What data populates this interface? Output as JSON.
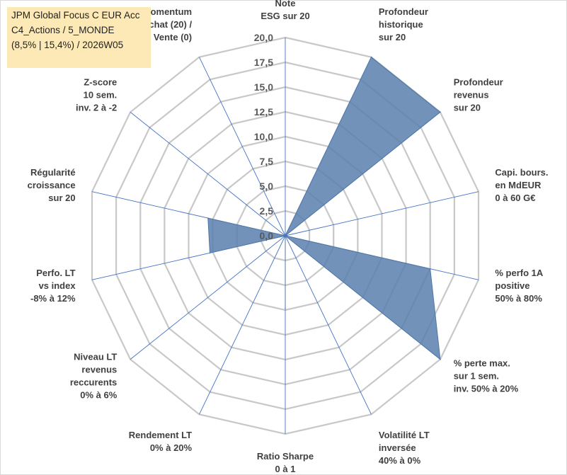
{
  "title_box": {
    "line1": "JPM Global Focus C EUR Acc",
    "line2": "C4_Actions / 5_MONDE",
    "line3": "(8,5% | 15,4%) / 2026W05"
  },
  "colors": {
    "fill": "#5b7fad",
    "stroke": "#4f78a8",
    "grid": "#c8c8c8",
    "spoke": "#4472c4"
  },
  "chart_data": {
    "type": "radar",
    "rlim": [
      0,
      20
    ],
    "tick_values": [
      0,
      2.5,
      5,
      7.5,
      10,
      12.5,
      15,
      17.5,
      20
    ],
    "tick_labels": [
      "0,0",
      "2,5",
      "5,0",
      "7,5",
      "10,0",
      "12,5",
      "15,0",
      "17,5",
      "20,0"
    ],
    "grid": true,
    "legend": "none",
    "axes": [
      {
        "lines": [
          "Note",
          "ESG sur 20"
        ]
      },
      {
        "lines": [
          "Profondeur",
          "historique",
          "sur 20"
        ]
      },
      {
        "lines": [
          "Profondeur",
          "revenus",
          "sur 20"
        ]
      },
      {
        "lines": [
          "Capi. bours.",
          "en MdEUR",
          "0 à 60 G€"
        ]
      },
      {
        "lines": [
          "% perfo 1A",
          "positive",
          "50% à 80%"
        ]
      },
      {
        "lines": [
          "% perte max.",
          "sur 1 sem.",
          "inv. 50% à 20%"
        ]
      },
      {
        "lines": [
          "Volatilité LT",
          "inversée",
          "40% à 0%"
        ]
      },
      {
        "lines": [
          "Ratio Sharpe",
          "0 à 1"
        ]
      },
      {
        "lines": [
          "Rendement LT",
          "0% à 20%"
        ]
      },
      {
        "lines": [
          "Niveau LT",
          "revenus",
          "reccurents",
          "0% à 6%"
        ]
      },
      {
        "lines": [
          "Perfo. LT",
          "vs index",
          "-8% à 12%"
        ]
      },
      {
        "lines": [
          "Régularité",
          "croissance",
          "sur 20"
        ]
      },
      {
        "lines": [
          "Z-score",
          "10 sem.",
          "inv. 2 à -2"
        ]
      },
      {
        "lines": [
          "Momentum",
          "Achat (20) /",
          "Vente (0)"
        ]
      }
    ],
    "series": [
      {
        "values": [
          0,
          20,
          20,
          0,
          15,
          20,
          0,
          7.3,
          0,
          0,
          7.8,
          8.0,
          0,
          0
        ]
      }
    ]
  }
}
